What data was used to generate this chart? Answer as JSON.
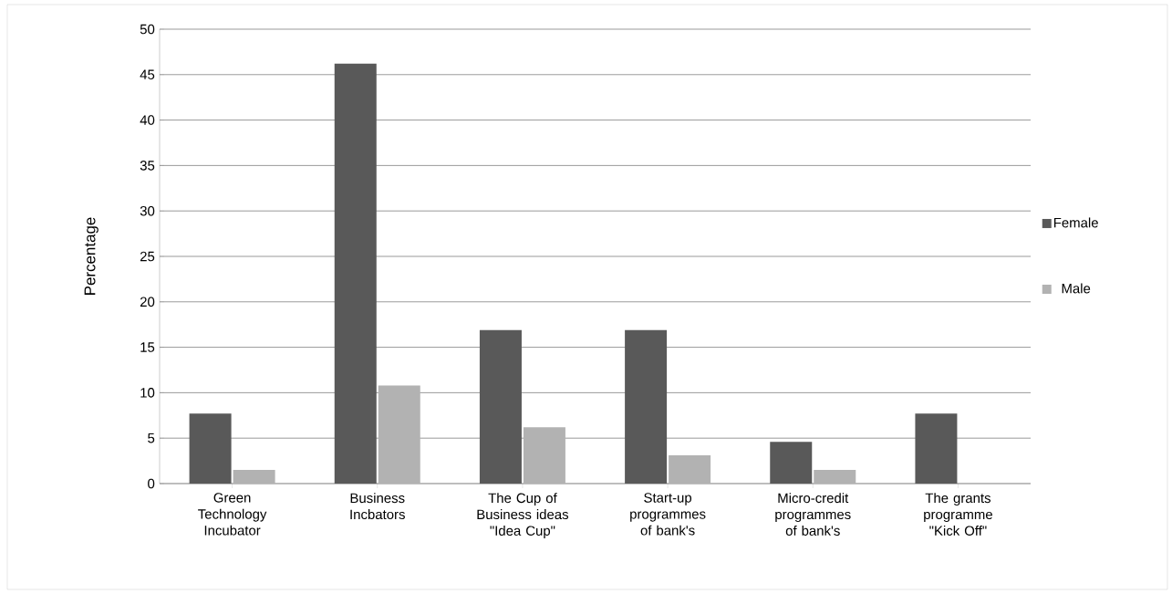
{
  "chart_data": {
    "type": "bar",
    "ylabel": "Percentage",
    "categories": [
      "Green Technology Incubator",
      "Business Incbators",
      "The Cup of Business ideas \"Idea Cup\"",
      "Start-up programmes of bank's",
      "Micro-credit programmes of bank's",
      "The grants programme \"Kick Off\""
    ],
    "series": [
      {
        "name": "Female",
        "color": "#595959",
        "values": [
          7.7,
          46.2,
          16.9,
          16.9,
          4.6,
          7.7
        ]
      },
      {
        "name": "Male",
        "color": "#b2b2b2",
        "values": [
          1.5,
          10.8,
          6.2,
          3.1,
          1.5,
          0
        ]
      }
    ],
    "ylim": [
      0,
      50
    ],
    "yticks": [
      0,
      5,
      10,
      15,
      20,
      25,
      30,
      35,
      40,
      45,
      50
    ],
    "grid": "y",
    "legend": "right"
  }
}
